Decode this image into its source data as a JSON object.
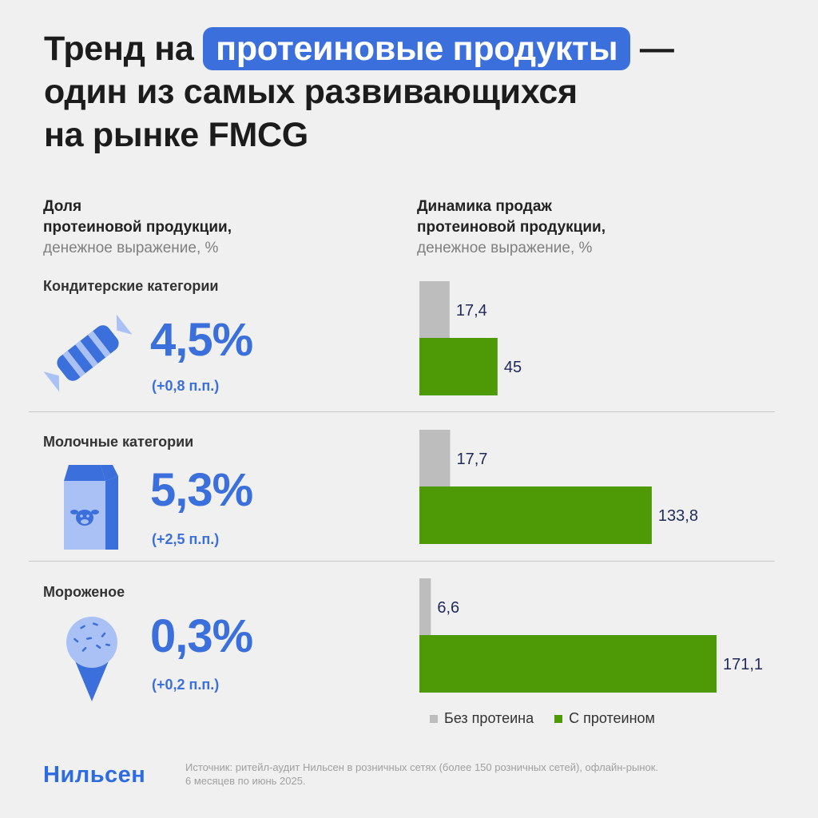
{
  "title": {
    "prefix": "Тренд на",
    "highlight": "протеиновые продукты",
    "dash": "—",
    "line2": "один из самых развивающихся",
    "line3": "на рынке FMCG"
  },
  "left_header": {
    "line1": "Доля",
    "line2": "протеиновой продукции,",
    "sub": "денежное выражение, %"
  },
  "right_header": {
    "line1": "Динамика продаж",
    "line2": "протеиновой продукции,",
    "sub": "денежное выражение, %"
  },
  "categories": [
    {
      "name": "Кондитерские категории",
      "share": "4,5%",
      "delta": "(+0,8 п.п.)",
      "icon": "candy-icon"
    },
    {
      "name": "Молочные категории",
      "share": "5,3%",
      "delta": "(+2,5 п.п.)",
      "icon": "milk-carton-icon"
    },
    {
      "name": "Мороженое",
      "share": "0,3%",
      "delta": "(+0,2 п.п.)",
      "icon": "ice-cream-icon"
    }
  ],
  "chart_data": {
    "type": "bar",
    "orientation": "horizontal",
    "title": "Динамика продаж протеиновой продукции, денежное выражение, %",
    "categories": [
      "Кондитерские категории",
      "Молочные категории",
      "Мороженое"
    ],
    "series": [
      {
        "name": "Без протеина",
        "values": [
          17.4,
          17.7,
          6.6
        ],
        "labels": [
          "17,4",
          "17,7",
          "6,6"
        ],
        "color": "#bdbdbd"
      },
      {
        "name": "С протеином",
        "values": [
          45,
          133.8,
          171.1
        ],
        "labels": [
          "45",
          "133,8",
          "171,1"
        ],
        "color": "#4e9a06"
      }
    ],
    "legend": "bottom",
    "grid": false
  },
  "legend": {
    "gray": "Без протеина",
    "green": "С протеином"
  },
  "colors": {
    "accent": "#3b6fdc",
    "green": "#4e9a06",
    "gray": "#bdbdbd",
    "icon_light": "#a9c1f5"
  },
  "footer": {
    "logo": "Нильсен",
    "source_line1": "Источник: ритейл-аудит Нильсен в розничных сетях (более 150 розничных сетей), офлайн-рынок.",
    "source_line2": "6 месяцев по июнь 2025."
  }
}
